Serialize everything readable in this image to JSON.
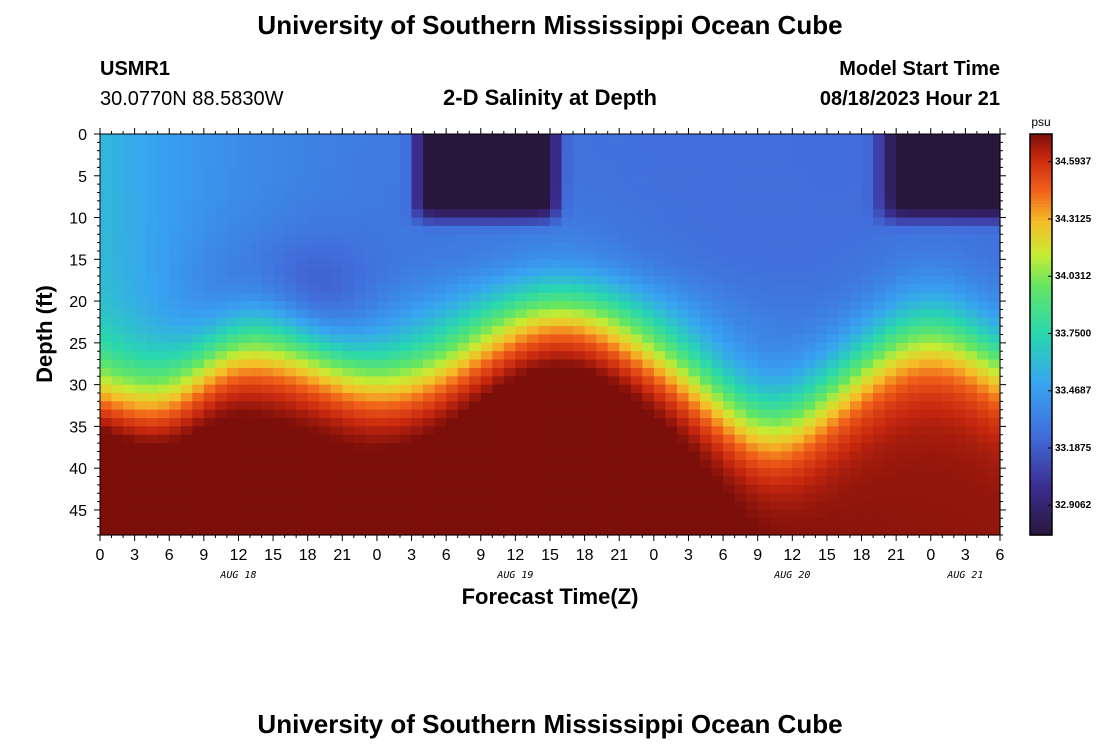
{
  "page_title": "University of Southern Mississippi Ocean Cube",
  "footer_title": "University of Southern Mississippi Ocean Cube",
  "station": {
    "id": "USMR1",
    "location": "30.0770N  88.5830W"
  },
  "model": {
    "label": "Model Start Time",
    "time": "08/18/2023 Hour 21"
  },
  "chart_data": {
    "type": "heatmap",
    "title": "2-D Salinity at Depth",
    "xlabel": "Forecast Time(Z)",
    "ylabel": "Depth (ft)",
    "units": "psu",
    "x_hours": [
      0,
      78
    ],
    "ylim": [
      0,
      48
    ],
    "y_inverted": true,
    "x_tick_labels": [
      "0",
      "3",
      "6",
      "9",
      "12",
      "15",
      "18",
      "21",
      "0",
      "3",
      "6",
      "9",
      "12",
      "15",
      "18",
      "21",
      "0",
      "3",
      "6",
      "9",
      "12",
      "15",
      "18",
      "21",
      "0",
      "3",
      "6"
    ],
    "y_tick_labels": [
      "0",
      "5",
      "10",
      "15",
      "20",
      "25",
      "30",
      "35",
      "40",
      "45"
    ],
    "date_labels": [
      {
        "label": "AUG 18",
        "hour": 12
      },
      {
        "label": "AUG 19",
        "hour": 36
      },
      {
        "label": "AUG 20",
        "hour": 60
      },
      {
        "label": "AUG 21",
        "hour": 75
      }
    ],
    "colorbar": {
      "range": [
        32.76,
        34.73
      ],
      "tick_labels": [
        "34.5937",
        "34.3125",
        "34.0312",
        "33.7500",
        "33.4687",
        "33.1875",
        "32.9062"
      ],
      "tick_values": [
        34.5937,
        34.3125,
        34.0312,
        33.75,
        33.4687,
        33.1875,
        32.9062
      ]
    },
    "description_values": {
      "surface_low_psu": 32.85,
      "bottom_high_psu": 34.65
    }
  }
}
